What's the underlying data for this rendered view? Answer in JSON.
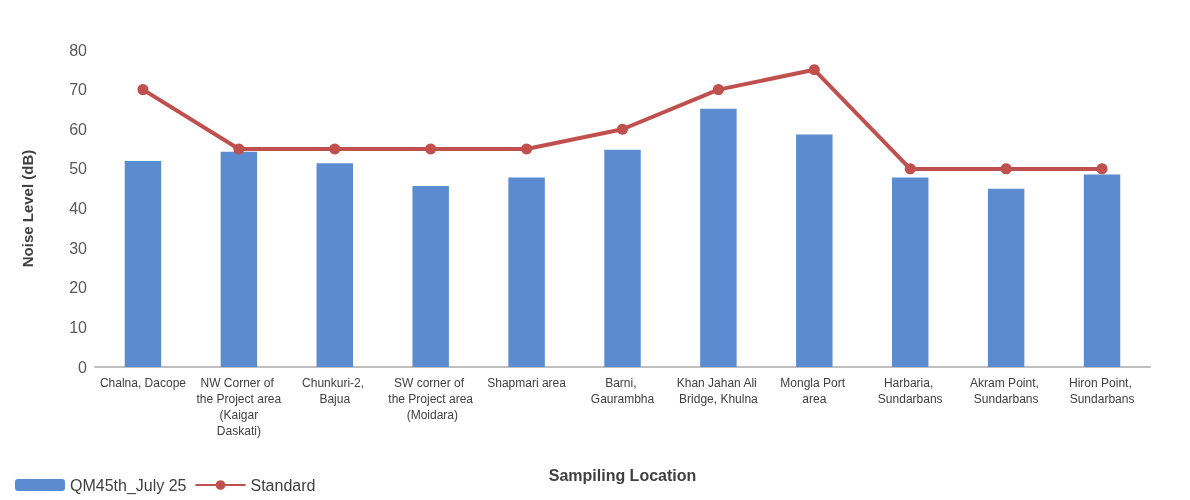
{
  "chart_data": {
    "type": "bar",
    "xlabel": "Sampiling Location",
    "ylabel": "Noise Level (dB)",
    "categories": [
      "Chalna, Dacope",
      "NW Corner of the Project area (Kaigar Daskati)",
      "Chunkuri-2, Bajua",
      "SW corner of the Project area (Moidara)",
      "Shapmari area",
      "Barni, Gaurambha",
      "Khan Jahan Ali Bridge, Khulna",
      "Mongla Port area",
      "Harbaria, Sundarbans",
      "Akram Point, Sundarbans",
      "Hiron Point, Sundarbans"
    ],
    "series": [
      {
        "name": "QM45th_July 25",
        "color": "#5b8bd0",
        "values": [
          52,
          54.3,
          51.4,
          45.7,
          47.8,
          54.8,
          65.2,
          58.7,
          47.8,
          45,
          48.6
        ]
      },
      {
        "name": "Standard",
        "type": "line",
        "color": "#c0504d",
        "values": [
          70,
          55,
          55,
          55,
          55,
          60,
          70,
          75,
          50,
          50,
          50
        ]
      }
    ],
    "ylim": [
      0,
      80
    ],
    "yticks": [
      0,
      10,
      20,
      30,
      40,
      50,
      60,
      70,
      80
    ],
    "grid": false,
    "legend": "bottom left",
    "marker": "circle",
    "line_style": "solid"
  }
}
